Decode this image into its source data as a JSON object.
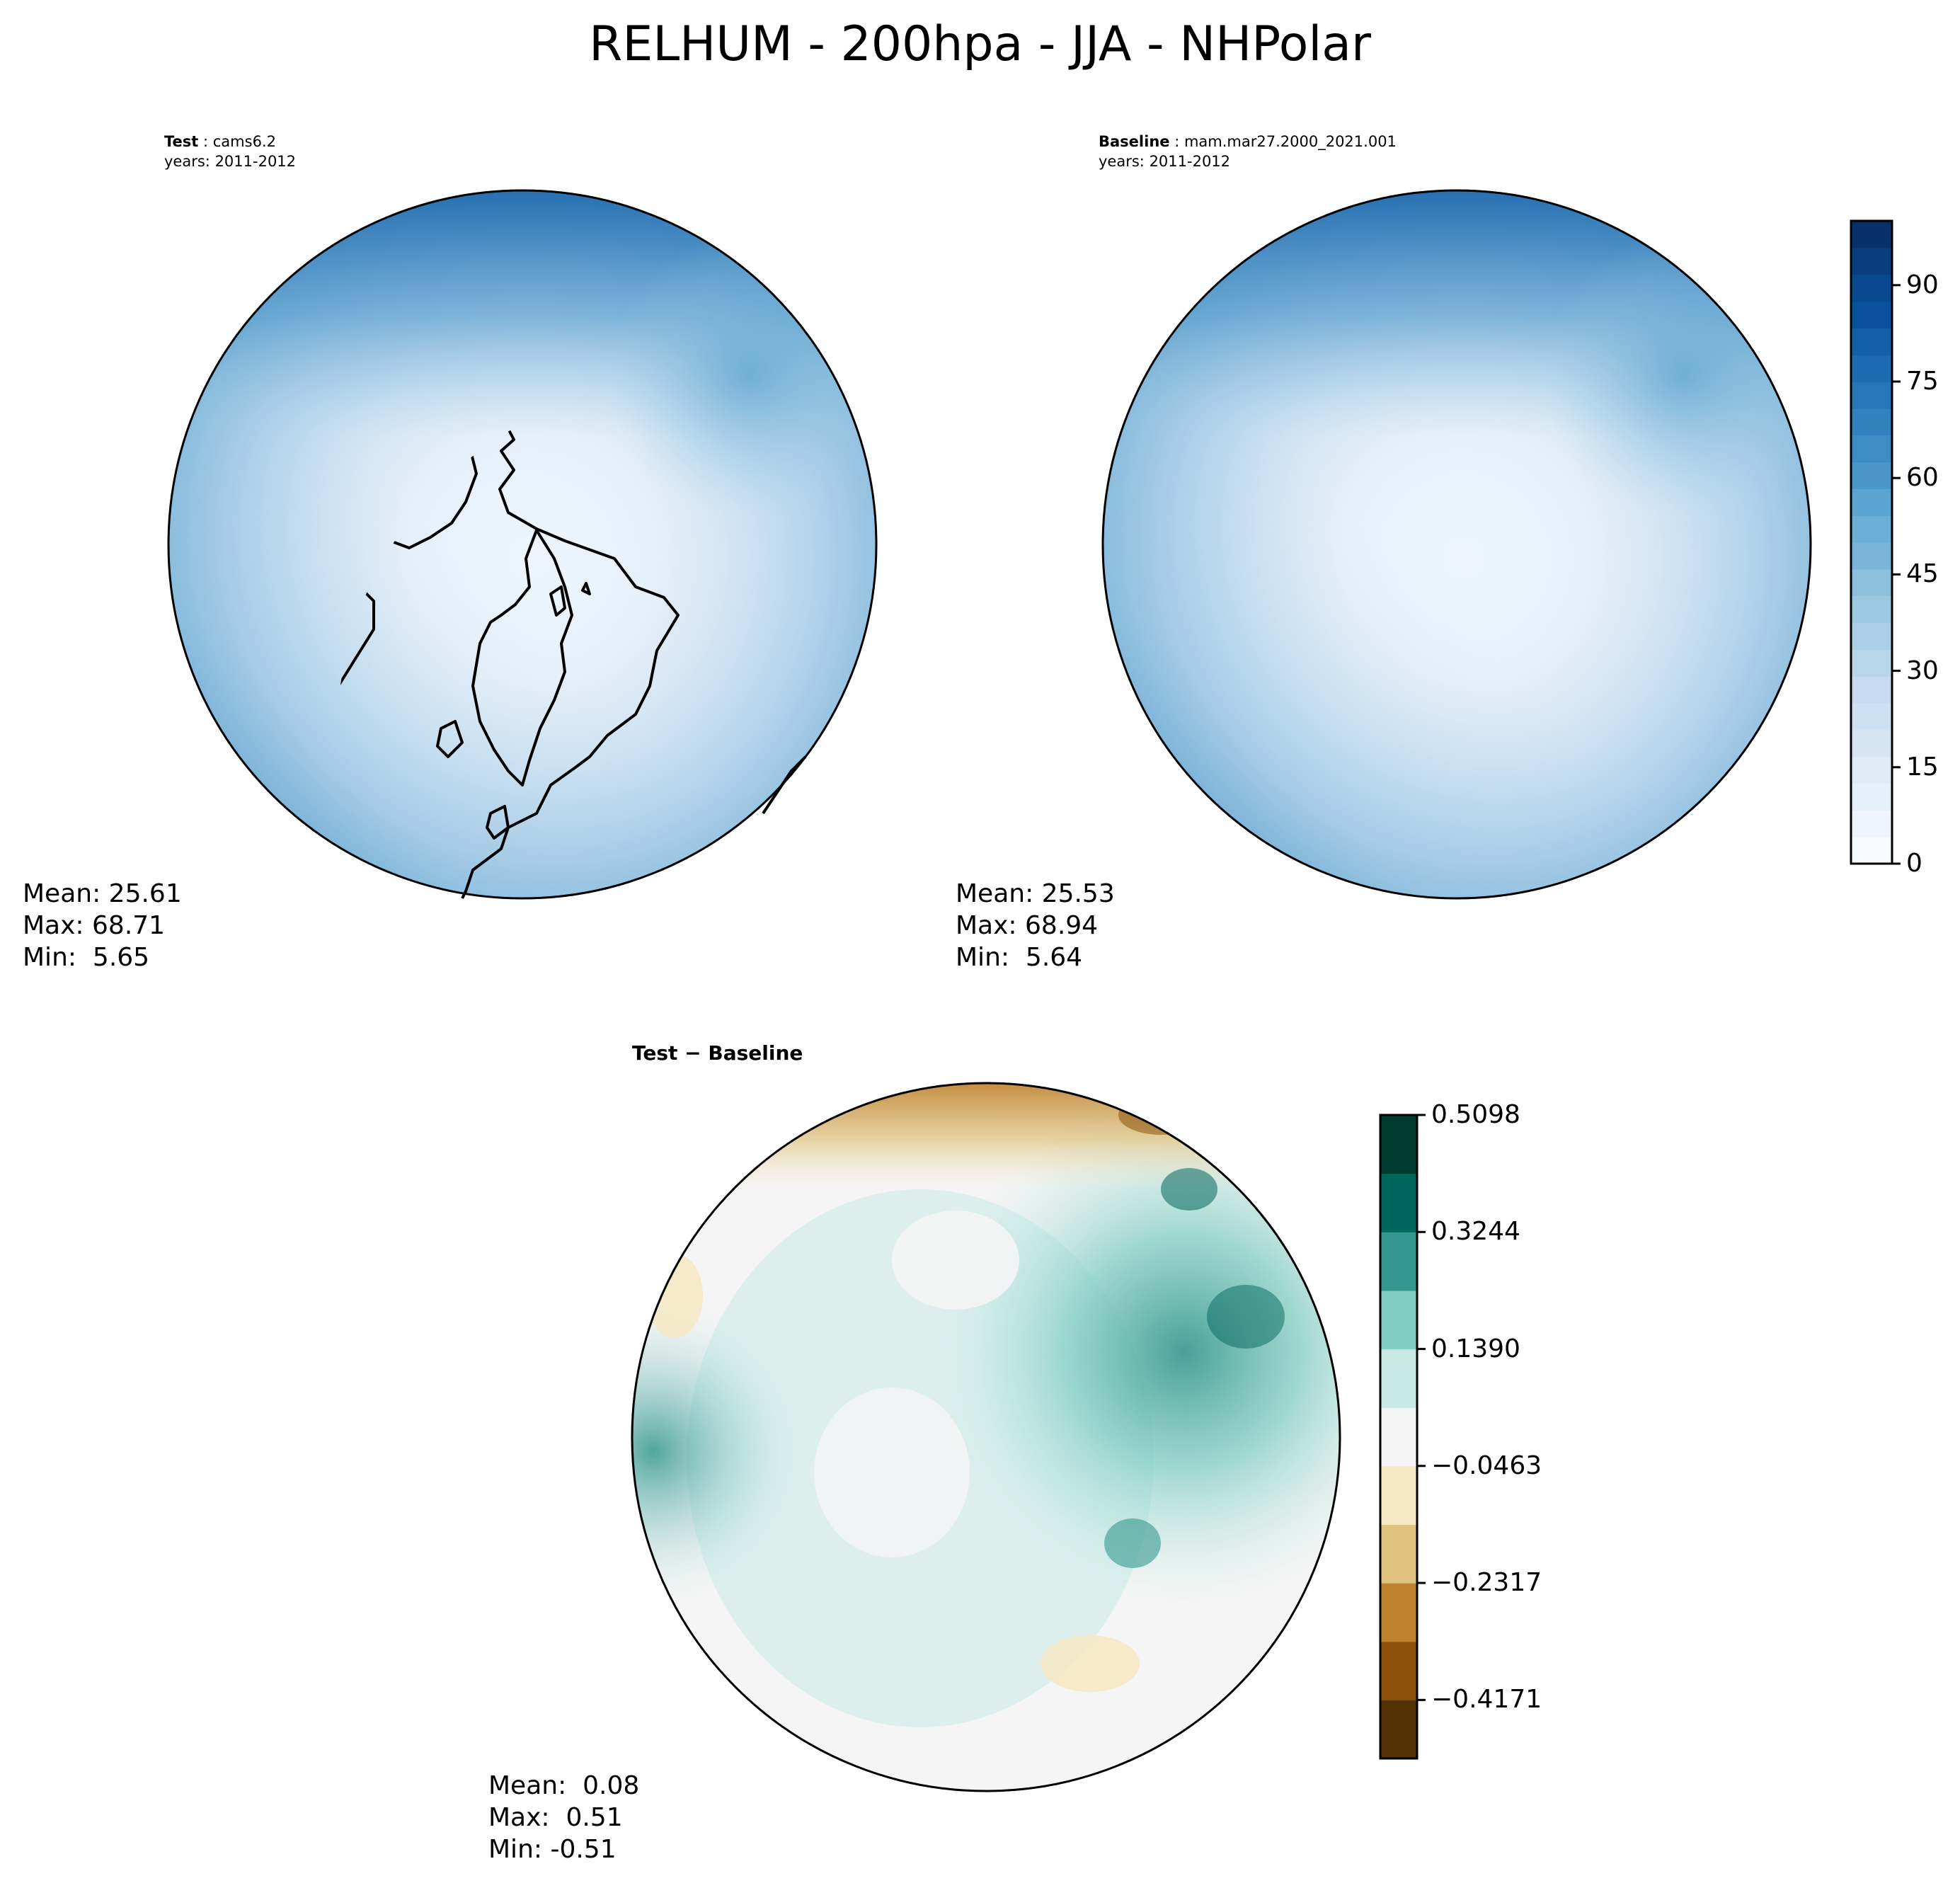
{
  "figure": {
    "title": "RELHUM - 200hpa - JJA - NHPolar"
  },
  "panels": {
    "test": {
      "label": "Test",
      "case": "cams6.2",
      "years_label": "years:",
      "years": "2011-2012",
      "stats": {
        "mean_label": "Mean:",
        "mean": "25.61",
        "max_label": "Max:",
        "max": "68.71",
        "min_label": "Min:",
        "min": " 5.65"
      }
    },
    "baseline": {
      "label": "Baseline",
      "case": "mam.mar27.2000_2021.001",
      "years_label": "years:",
      "years": "2011-2012",
      "stats": {
        "mean_label": "Mean:",
        "mean": "25.53",
        "max_label": "Max:",
        "max": "68.94",
        "min_label": "Min:",
        "min": " 5.64"
      }
    },
    "diff": {
      "label": "Test − Baseline",
      "stats": {
        "mean_label": "Mean:",
        "mean": " 0.08",
        "max_label": "Max:",
        "max": " 0.51",
        "min_label": "Min:",
        "min": "-0.51"
      }
    }
  },
  "colorbars": {
    "main": {
      "range": [
        0,
        100
      ],
      "ticks": [
        "0",
        "15",
        "30",
        "45",
        "60",
        "75",
        "90"
      ],
      "tick_values": [
        0,
        15,
        30,
        45,
        60,
        75,
        90
      ],
      "colors": [
        "#f7fbff",
        "#eef5fc",
        "#e6f0f9",
        "#deebf7",
        "#d5e5f4",
        "#cde0f1",
        "#c6dbef",
        "#b8d5ea",
        "#abcfe6",
        "#9ecae1",
        "#8cc0dd",
        "#79b5d9",
        "#6baed6",
        "#5ba3d0",
        "#4a98c9",
        "#3d8dc4",
        "#3182bd",
        "#2676b8",
        "#1c6aaf",
        "#135fa7",
        "#08519c",
        "#084990",
        "#083d7f",
        "#08306b"
      ]
    },
    "diff": {
      "range": [
        -0.5098,
        0.5098
      ],
      "ticks": [
        "0.5098",
        "0.3244",
        "0.1390",
        "−0.0463",
        "−0.2317",
        "−0.4171"
      ],
      "tick_values": [
        0.5098,
        0.3244,
        0.139,
        -0.0463,
        -0.2317,
        -0.4171
      ],
      "colors": [
        "#543005",
        "#8c510a",
        "#bf812d",
        "#dfc27d",
        "#f6e8c3",
        "#f5f5f5",
        "#c7eae5",
        "#80cdc1",
        "#35978f",
        "#01665e",
        "#003c30"
      ]
    }
  },
  "map_data": {
    "projection": "north-polar-stereographic",
    "region": "NHPolar",
    "variable": "RELHUM",
    "level": "200hpa",
    "season": "JJA"
  }
}
